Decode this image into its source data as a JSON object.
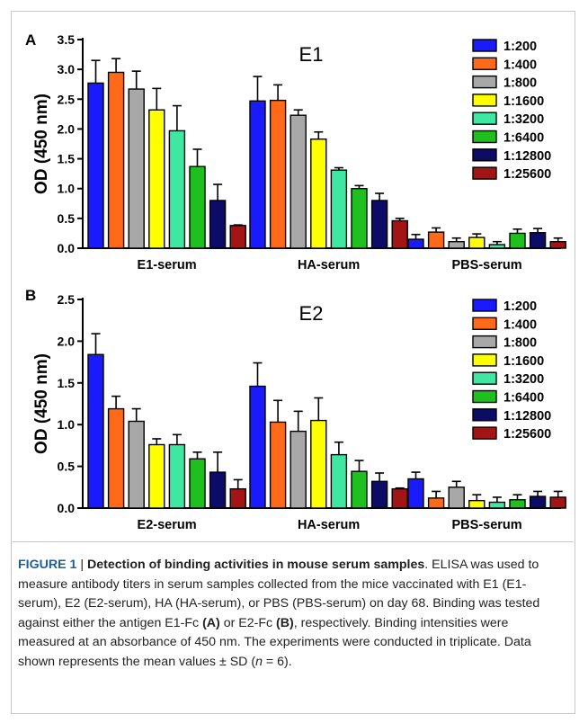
{
  "chart_data": [
    {
      "type": "bar",
      "panel": "A",
      "title": "E1",
      "ylabel": "OD (450 nm)",
      "ylim": [
        0,
        3.5
      ],
      "yticks": [
        "0.0",
        "0.5",
        "1.0",
        "1.5",
        "2.0",
        "2.5",
        "3.0",
        "3.5"
      ],
      "legend_position": "top-right",
      "categories": [
        "E1-serum",
        "HA-serum",
        "PBS-serum"
      ],
      "series": [
        {
          "name": "1:200",
          "color": "#1a1aff",
          "values": [
            2.77,
            2.47,
            0.15
          ],
          "errors": [
            0.38,
            0.41,
            0.08
          ]
        },
        {
          "name": "1:400",
          "color": "#ff6a1a",
          "values": [
            2.95,
            2.48,
            0.27
          ],
          "errors": [
            0.23,
            0.26,
            0.07
          ]
        },
        {
          "name": "1:800",
          "color": "#a8a8a8",
          "values": [
            2.67,
            2.23,
            0.11
          ],
          "errors": [
            0.3,
            0.09,
            0.06
          ]
        },
        {
          "name": "1:1600",
          "color": "#ffff00",
          "values": [
            2.32,
            1.83,
            0.18
          ],
          "errors": [
            0.36,
            0.12,
            0.06
          ]
        },
        {
          "name": "1:3200",
          "color": "#3fe8a2",
          "values": [
            1.97,
            1.31,
            0.06
          ],
          "errors": [
            0.42,
            0.04,
            0.05
          ]
        },
        {
          "name": "1:6400",
          "color": "#1fbf1f",
          "values": [
            1.37,
            1.0,
            0.25
          ],
          "errors": [
            0.29,
            0.05,
            0.07
          ]
        },
        {
          "name": "1:12800",
          "color": "#0c0c66",
          "values": [
            0.8,
            0.8,
            0.26
          ],
          "errors": [
            0.27,
            0.12,
            0.07
          ]
        },
        {
          "name": "1:25600",
          "color": "#a31515",
          "values": [
            0.38,
            0.46,
            0.11
          ],
          "errors": [
            0.01,
            0.04,
            0.06
          ]
        }
      ]
    },
    {
      "type": "bar",
      "panel": "B",
      "title": "E2",
      "ylabel": "OD (450 nm)",
      "ylim": [
        0,
        2.5
      ],
      "yticks": [
        "0.0",
        "0.5",
        "1.0",
        "1.5",
        "2.0",
        "2.5"
      ],
      "legend_position": "top-right",
      "categories": [
        "E2-serum",
        "HA-serum",
        "PBS-serum"
      ],
      "series": [
        {
          "name": "1:200",
          "color": "#1a1aff",
          "values": [
            1.84,
            1.46,
            0.35
          ],
          "errors": [
            0.25,
            0.28,
            0.08
          ]
        },
        {
          "name": "1:400",
          "color": "#ff6a1a",
          "values": [
            1.19,
            1.03,
            0.12
          ],
          "errors": [
            0.15,
            0.26,
            0.08
          ]
        },
        {
          "name": "1:800",
          "color": "#a8a8a8",
          "values": [
            1.04,
            0.92,
            0.25
          ],
          "errors": [
            0.15,
            0.24,
            0.07
          ]
        },
        {
          "name": "1:1600",
          "color": "#ffff00",
          "values": [
            0.76,
            1.05,
            0.09
          ],
          "errors": [
            0.07,
            0.27,
            0.07
          ]
        },
        {
          "name": "1:3200",
          "color": "#3fe8a2",
          "values": [
            0.76,
            0.64,
            0.07
          ],
          "errors": [
            0.12,
            0.15,
            0.06
          ]
        },
        {
          "name": "1:6400",
          "color": "#1fbf1f",
          "values": [
            0.59,
            0.44,
            0.1
          ],
          "errors": [
            0.08,
            0.13,
            0.06
          ]
        },
        {
          "name": "1:12800",
          "color": "#0c0c66",
          "values": [
            0.43,
            0.32,
            0.14
          ],
          "errors": [
            0.24,
            0.1,
            0.06
          ]
        },
        {
          "name": "1:25600",
          "color": "#a31515",
          "values": [
            0.23,
            0.23,
            0.13
          ],
          "errors": [
            0.11,
            0.01,
            0.07
          ]
        }
      ]
    }
  ],
  "caption": {
    "label": "FIGURE 1",
    "separator": " | ",
    "title": "Detection of binding activities in mouse serum samples",
    "text_1": ". ELISA was used to measure antibody titers in serum samples collected from the mice vaccinated with E1 (E1-serum), E2 (E2-serum), HA (HA-serum), or PBS (PBS-serum) on day 68. Binding was tested against either the antigen E1-Fc ",
    "ref_a": "(A)",
    "text_2": " or E2-Fc ",
    "ref_b": "(B)",
    "text_3": ", respectively. Binding intensities were measured at an absorbance of 450 nm. The experiments were conducted in triplicate. Data shown represents the mean values ± SD (",
    "n_italic": "n",
    "text_4": " = 6)."
  }
}
